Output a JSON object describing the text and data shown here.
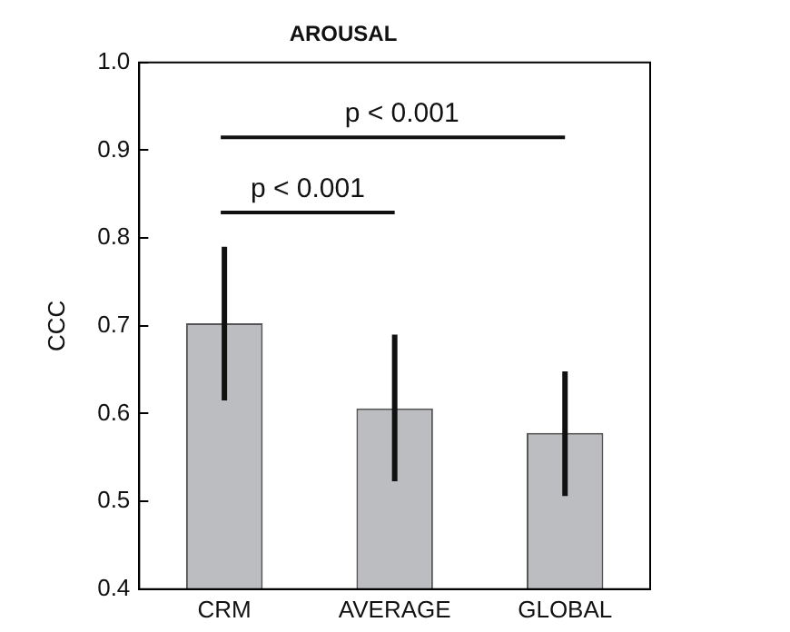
{
  "chart_data": {
    "type": "bar",
    "title": "AROUSAL",
    "ylabel": "CCC",
    "categories": [
      "CRM",
      "AVERAGE",
      "GLOBAL"
    ],
    "values": [
      0.703,
      0.606,
      0.578
    ],
    "errors": [
      [
        0.615,
        0.79
      ],
      [
        0.523,
        0.69
      ],
      [
        0.506,
        0.648
      ]
    ],
    "color": "#bcbdc1",
    "ylim": [
      0.4,
      1.0
    ],
    "yticks": [
      {
        "value": 0.4,
        "label": "0.4"
      },
      {
        "value": 0.5,
        "label": "0.5"
      },
      {
        "value": 0.6,
        "label": "0.6"
      },
      {
        "value": 0.7,
        "label": "0.7"
      },
      {
        "value": 0.8,
        "label": "0.8"
      },
      {
        "value": 0.9,
        "label": "0.9"
      },
      {
        "value": 1.0,
        "label": "1.0"
      }
    ],
    "grid": false,
    "legend": false,
    "annotations": [
      "p < 0.001",
      "p < 0.001"
    ]
  }
}
